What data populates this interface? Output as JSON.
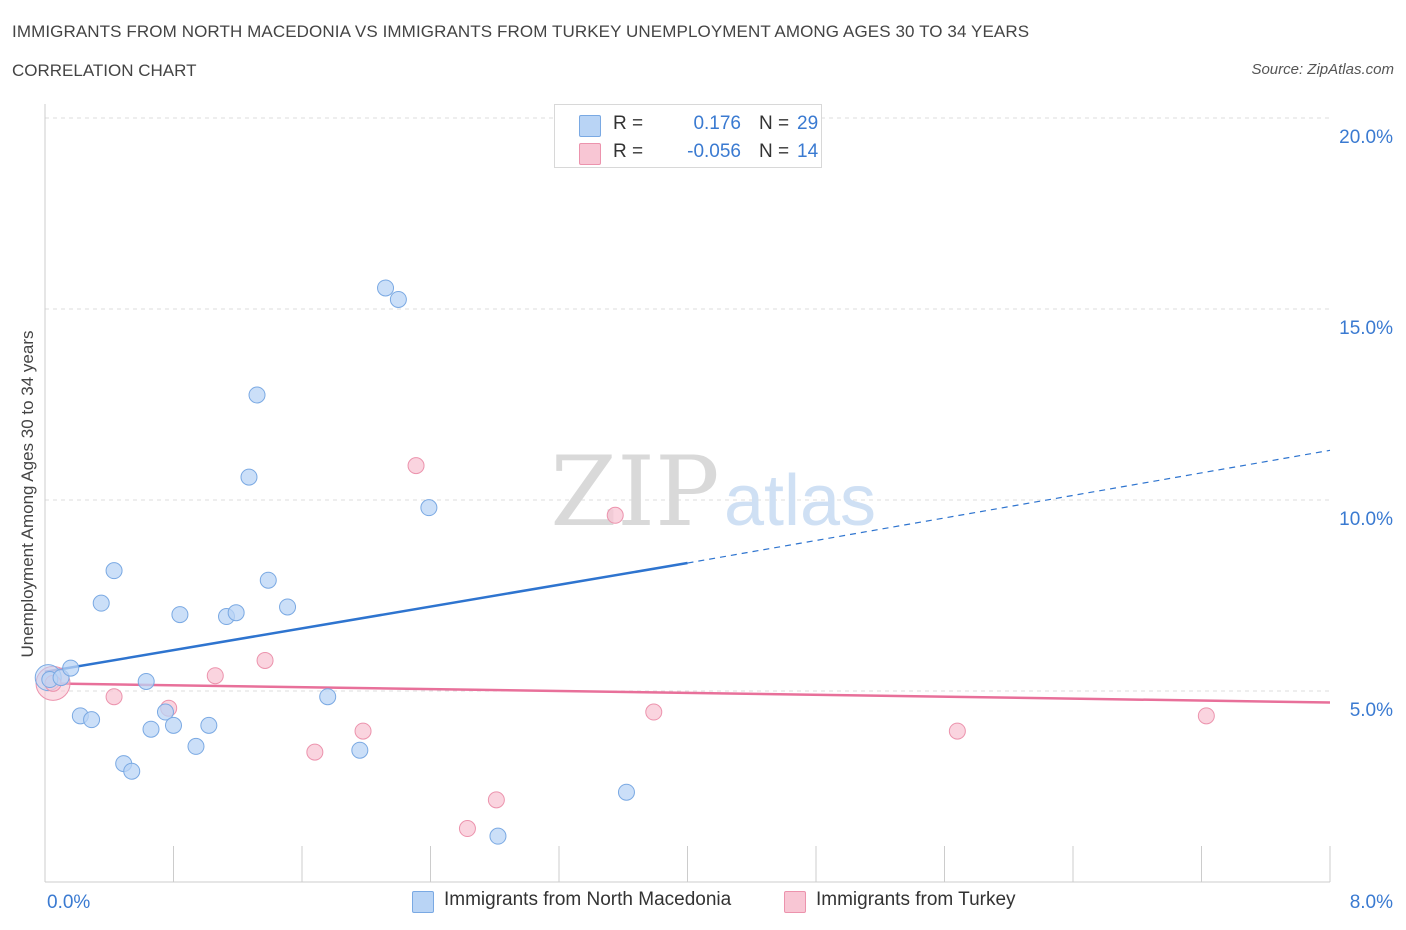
{
  "header": {
    "title": "IMMIGRANTS FROM NORTH MACEDONIA VS IMMIGRANTS FROM TURKEY UNEMPLOYMENT AMONG AGES 30 TO 34 YEARS",
    "subtitle": "CORRELATION CHART",
    "source": "Source: ZipAtlas.com"
  },
  "watermark": {
    "zip": "ZIP",
    "atlas": "atlas"
  },
  "stats_legend": [
    {
      "r_label": "R =",
      "r_value": "0.176",
      "n_label": "N =",
      "n_value": "29"
    },
    {
      "r_label": "R =",
      "r_value": "-0.056",
      "n_label": "N =",
      "n_value": "14"
    }
  ],
  "colors": {
    "blue_fill": "#b9d4f5",
    "blue_stroke": "#7aa9e3",
    "blue_line": "#2e74cf",
    "pink_fill": "#f8c6d4",
    "pink_stroke": "#ec93ad",
    "pink_line": "#e8709a",
    "accent_text": "#3a7ad1",
    "grid": "#dddddd"
  },
  "chart_data": {
    "type": "scatter",
    "title": "IMMIGRANTS FROM NORTH MACEDONIA VS IMMIGRANTS FROM TURKEY UNEMPLOYMENT AMONG AGES 30 TO 34 YEARS",
    "xlabel": "",
    "ylabel": "Unemployment Among Ages 30 to 34 years",
    "xlim": [
      0,
      8
    ],
    "ylim": [
      0,
      20
    ],
    "x_tick_labels": [
      "0.0%",
      "8.0%"
    ],
    "y_ticks": [
      {
        "value": 5,
        "label": "5.0%"
      },
      {
        "value": 10,
        "label": "10.0%"
      },
      {
        "value": 15,
        "label": "15.0%"
      },
      {
        "value": 20,
        "label": "20.0%"
      }
    ],
    "x_minor_ticks": [
      0.8,
      1.6,
      2.4,
      3.2,
      4.0,
      4.8,
      5.6,
      6.4,
      7.2,
      8.0
    ],
    "series": [
      {
        "name": "Immigrants from North Macedonia",
        "color": "blue",
        "points": [
          {
            "x": 0.03,
            "y": 5.3
          },
          {
            "x": 0.1,
            "y": 5.35
          },
          {
            "x": 0.16,
            "y": 5.6
          },
          {
            "x": 0.22,
            "y": 4.35
          },
          {
            "x": 0.29,
            "y": 4.25
          },
          {
            "x": 0.35,
            "y": 7.3
          },
          {
            "x": 0.43,
            "y": 8.15
          },
          {
            "x": 0.49,
            "y": 3.1
          },
          {
            "x": 0.54,
            "y": 2.9
          },
          {
            "x": 0.63,
            "y": 5.25
          },
          {
            "x": 0.66,
            "y": 4.0
          },
          {
            "x": 0.75,
            "y": 4.45
          },
          {
            "x": 0.8,
            "y": 4.1
          },
          {
            "x": 0.84,
            "y": 7.0
          },
          {
            "x": 0.94,
            "y": 3.55
          },
          {
            "x": 1.02,
            "y": 4.1
          },
          {
            "x": 1.13,
            "y": 6.95
          },
          {
            "x": 1.19,
            "y": 7.05
          },
          {
            "x": 1.27,
            "y": 10.6
          },
          {
            "x": 1.32,
            "y": 12.75
          },
          {
            "x": 1.39,
            "y": 7.9
          },
          {
            "x": 1.51,
            "y": 7.2
          },
          {
            "x": 1.76,
            "y": 4.85
          },
          {
            "x": 1.96,
            "y": 3.45
          },
          {
            "x": 2.12,
            "y": 15.55
          },
          {
            "x": 2.2,
            "y": 15.25
          },
          {
            "x": 2.39,
            "y": 9.8
          },
          {
            "x": 2.82,
            "y": 1.2
          },
          {
            "x": 3.62,
            "y": 2.35
          }
        ],
        "trend": {
          "x0": 0,
          "y0": 5.5,
          "x1_solid": 4.0,
          "y1_solid": 8.35,
          "x1_dashed": 8.0,
          "y1_dashed": 11.3,
          "style": "solid then dashed"
        }
      },
      {
        "name": "Immigrants from Turkey",
        "color": "pink",
        "points": [
          {
            "x": 0.05,
            "y": 5.2
          },
          {
            "x": 0.43,
            "y": 4.85
          },
          {
            "x": 0.77,
            "y": 4.55
          },
          {
            "x": 1.06,
            "y": 5.4
          },
          {
            "x": 1.37,
            "y": 5.8
          },
          {
            "x": 1.68,
            "y": 3.4
          },
          {
            "x": 1.98,
            "y": 3.95
          },
          {
            "x": 2.31,
            "y": 10.9
          },
          {
            "x": 2.63,
            "y": 1.4
          },
          {
            "x": 2.81,
            "y": 2.15
          },
          {
            "x": 3.55,
            "y": 9.6
          },
          {
            "x": 3.79,
            "y": 4.45
          },
          {
            "x": 5.68,
            "y": 3.95
          },
          {
            "x": 7.23,
            "y": 4.35
          }
        ],
        "trend": {
          "x0": 0,
          "y0": 5.2,
          "x1": 8.0,
          "y1": 4.7,
          "style": "solid"
        }
      }
    ],
    "legend": [
      "Immigrants from North Macedonia",
      "Immigrants from Turkey"
    ]
  }
}
